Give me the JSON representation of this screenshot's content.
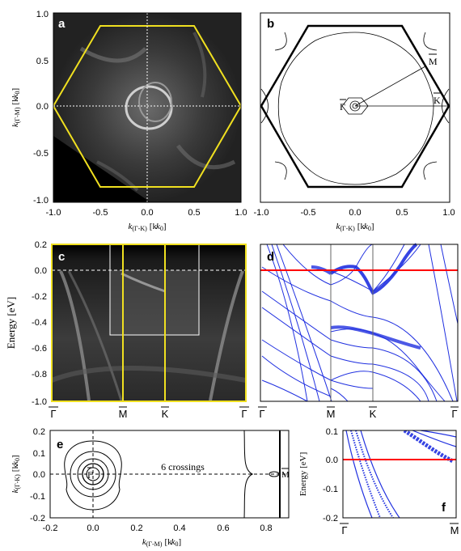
{
  "panels": {
    "a": {
      "label": "a"
    },
    "b": {
      "label": "b"
    },
    "c": {
      "label": "c"
    },
    "d": {
      "label": "d"
    },
    "e": {
      "label": "e"
    },
    "f": {
      "label": "f"
    }
  },
  "chart_data": [
    {
      "panel": "a",
      "type": "heatmap",
      "xlabel_k": "k",
      "xlabel_sub": "(Γ-K)",
      "xlabel_unit": "[k",
      "xlabel_unit_sub": "0",
      "xlabel_close": "]",
      "ylabel_k": "k",
      "ylabel_sub": "(Γ-M)",
      "ylabel_unit": "[k",
      "ylabel_unit_sub": "0",
      "ylabel_close": "]",
      "xlim": [
        -1.0,
        1.0
      ],
      "ylim": [
        -1.0,
        1.0
      ],
      "xticks": [
        "-1.0",
        "-0.5",
        "0.0",
        "0.5",
        "1.0"
      ],
      "yticks": [
        "1.0",
        "0.5",
        "0.0",
        "-0.5",
        "-1.0"
      ],
      "hexagon_color": "#f0e020"
    },
    {
      "panel": "b",
      "type": "diagram",
      "xlabel_k": "k",
      "xlabel_sub": "(Γ-K)",
      "xlabel_unit": "[k",
      "xlabel_unit_sub": "0",
      "xlabel_close": "]",
      "xlim": [
        -1.0,
        1.0
      ],
      "xticks": [
        "-1.0",
        "-0.5",
        "0.0",
        "0.5",
        "1.0"
      ],
      "point_labels": {
        "gamma": "Γ",
        "m": "M",
        "k": "K"
      }
    },
    {
      "panel": "c",
      "type": "heatmap",
      "ylabel": "Energy [eV]",
      "ylim": [
        -1.0,
        0.2
      ],
      "yticks": [
        "0.2",
        "0.0",
        "-0.2",
        "-0.4",
        "-0.6",
        "-0.8",
        "-1.0"
      ],
      "xticks": [
        "Γ",
        "M",
        "K",
        "Γ"
      ],
      "highlight_color": "#f0e020"
    },
    {
      "panel": "d",
      "type": "line",
      "ylim": [
        -1.0,
        0.2
      ],
      "xticks": [
        "Γ",
        "M",
        "K",
        "Γ"
      ],
      "fermi_color": "#ff0000",
      "band_color": "#2030e0"
    },
    {
      "panel": "e",
      "type": "line",
      "xlabel_k": "k",
      "xlabel_sub": "(Γ-M)",
      "xlabel_unit": "[k",
      "xlabel_unit_sub": "0",
      "xlabel_close": "]",
      "ylabel_k": "k",
      "ylabel_sub": "(Γ-K)",
      "ylabel_unit": "[k",
      "ylabel_unit_sub": "0",
      "ylabel_close": "]",
      "xlim": [
        -0.2,
        0.9
      ],
      "ylim": [
        -0.2,
        0.2
      ],
      "xticks": [
        "-0.2",
        "0.0",
        "0.2",
        "0.4",
        "0.6",
        "0.8"
      ],
      "yticks": [
        "0.2",
        "0.1",
        "0.0",
        "-0.1",
        "-0.2"
      ],
      "annotation": "6 crossings",
      "point_labels": {
        "gamma": "Γ",
        "m": "M"
      }
    },
    {
      "panel": "f",
      "type": "line",
      "ylabel": "Energy [eV]",
      "ylim": [
        -0.2,
        0.1
      ],
      "yticks": [
        "0.1",
        "0.0",
        "-0.1",
        "-0.2"
      ],
      "xticks": [
        "Γ",
        "M"
      ],
      "fermi_color": "#ff0000",
      "band_color": "#2030e0"
    }
  ]
}
